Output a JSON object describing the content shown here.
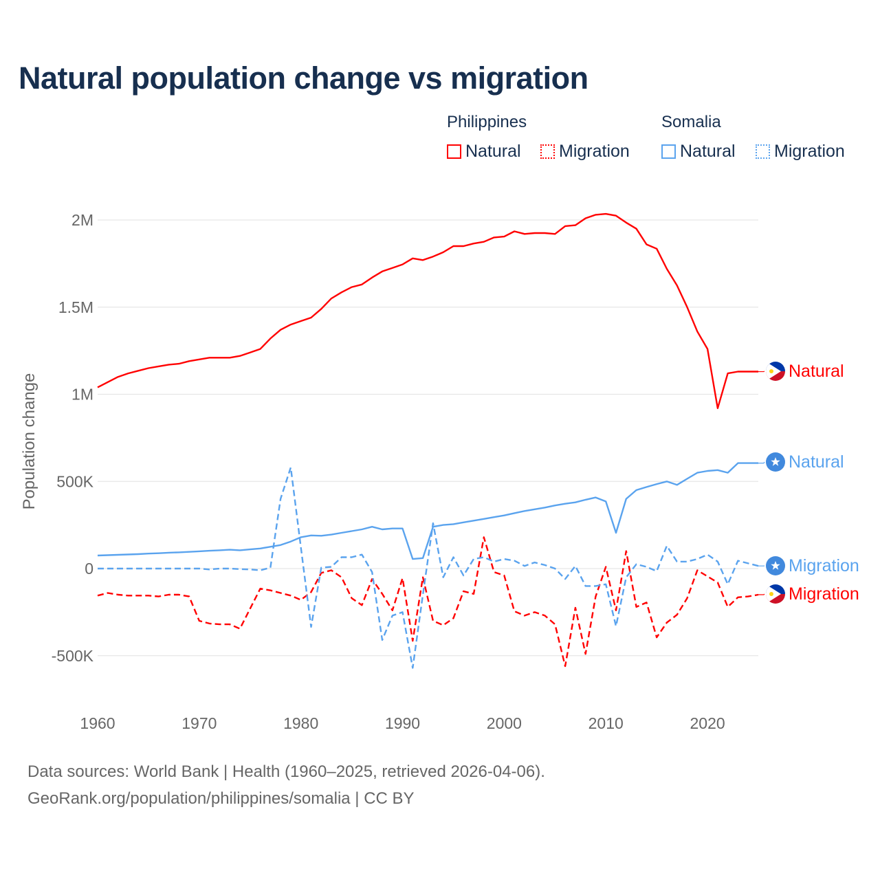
{
  "chart_data": {
    "type": "line",
    "title": "Natural population change vs migration",
    "ylabel": "Population change",
    "xlabel": "",
    "xlim": [
      1960,
      2025
    ],
    "ylim": [
      -600000,
      2150000
    ],
    "x_ticks": [
      1960,
      1970,
      1980,
      1990,
      2000,
      2010,
      2020
    ],
    "x_tick_labels": [
      "1960",
      "1970",
      "1980",
      "1990",
      "2000",
      "2010",
      "2020"
    ],
    "y_ticks": [
      -500000,
      0,
      500000,
      1000000,
      1500000,
      2000000
    ],
    "y_tick_labels": [
      "-500K",
      "0",
      "500K",
      "1M",
      "1.5M",
      "2M"
    ],
    "grid": "horizontal",
    "legend": {
      "placement": "top-right",
      "groups": [
        {
          "name": "Philippines",
          "items": [
            "Natural",
            "Migration"
          ]
        },
        {
          "name": "Somalia",
          "items": [
            "Natural",
            "Migration"
          ]
        }
      ]
    },
    "x_start": 1960,
    "series": [
      {
        "name": "Philippines Natural",
        "country": "Philippines",
        "kind": "Natural",
        "end_label": "Natural",
        "color": "#ff0000",
        "dash": "solid",
        "flag": "philippines-flag",
        "values": [
          1040000,
          1070000,
          1100000,
          1120000,
          1135000,
          1150000,
          1160000,
          1170000,
          1175000,
          1190000,
          1200000,
          1210000,
          1210000,
          1210000,
          1220000,
          1240000,
          1260000,
          1320000,
          1370000,
          1400000,
          1420000,
          1440000,
          1490000,
          1550000,
          1585000,
          1615000,
          1630000,
          1670000,
          1705000,
          1725000,
          1745000,
          1780000,
          1770000,
          1790000,
          1815000,
          1850000,
          1850000,
          1865000,
          1875000,
          1900000,
          1905000,
          1935000,
          1920000,
          1925000,
          1925000,
          1920000,
          1965000,
          1970000,
          2010000,
          2030000,
          2035000,
          2025000,
          1985000,
          1950000,
          1860000,
          1835000,
          1720000,
          1625000,
          1500000,
          1360000,
          1260000,
          920000,
          1120000,
          1130000,
          1130000,
          1130000
        ]
      },
      {
        "name": "Philippines Migration",
        "country": "Philippines",
        "kind": "Migration",
        "end_label": "Migration",
        "color": "#ff0000",
        "dash": "dashed",
        "flag": "philippines-flag",
        "values": [
          -155000,
          -140000,
          -150000,
          -155000,
          -155000,
          -155000,
          -160000,
          -150000,
          -150000,
          -160000,
          -300000,
          -315000,
          -320000,
          -320000,
          -345000,
          -230000,
          -115000,
          -125000,
          -140000,
          -155000,
          -180000,
          -135000,
          -25000,
          -10000,
          -50000,
          -170000,
          -210000,
          -60000,
          -145000,
          -240000,
          -55000,
          -415000,
          -50000,
          -300000,
          -325000,
          -285000,
          -130000,
          -145000,
          180000,
          -20000,
          -40000,
          -245000,
          -270000,
          -250000,
          -270000,
          -320000,
          -560000,
          -225000,
          -490000,
          -160000,
          10000,
          -240000,
          100000,
          -220000,
          -195000,
          -395000,
          -310000,
          -265000,
          -170000,
          -10000,
          -45000,
          -80000,
          -220000,
          -165000,
          -160000,
          -150000
        ]
      },
      {
        "name": "Somalia Natural",
        "country": "Somalia",
        "kind": "Natural",
        "end_label": "Natural",
        "color": "#5aa3ee",
        "dash": "solid",
        "flag": "somalia-flag",
        "values": [
          75000,
          77000,
          79000,
          81000,
          83000,
          86000,
          88000,
          91000,
          93000,
          96000,
          99000,
          102000,
          105000,
          108000,
          105000,
          110000,
          115000,
          125000,
          135000,
          155000,
          180000,
          190000,
          188000,
          195000,
          205000,
          215000,
          225000,
          240000,
          225000,
          230000,
          230000,
          55000,
          60000,
          240000,
          250000,
          255000,
          265000,
          275000,
          285000,
          295000,
          305000,
          318000,
          330000,
          340000,
          350000,
          362000,
          372000,
          380000,
          395000,
          408000,
          385000,
          205000,
          400000,
          450000,
          468000,
          485000,
          500000,
          480000,
          515000,
          550000,
          560000,
          565000,
          550000,
          605000,
          605000,
          605000
        ]
      },
      {
        "name": "Somalia Migration",
        "country": "Somalia",
        "kind": "Migration",
        "end_label": "Migration",
        "color": "#5aa3ee",
        "dash": "dashed",
        "flag": "somalia-flag",
        "values": [
          0,
          0,
          0,
          0,
          0,
          0,
          0,
          0,
          0,
          0,
          0,
          -5000,
          0,
          0,
          -3000,
          -5000,
          -10000,
          5000,
          400000,
          580000,
          120000,
          -335000,
          5000,
          10000,
          65000,
          65000,
          80000,
          -20000,
          -410000,
          -270000,
          -250000,
          -570000,
          -150000,
          260000,
          -50000,
          65000,
          -40000,
          55000,
          65000,
          40000,
          55000,
          45000,
          15000,
          35000,
          20000,
          0,
          -60000,
          15000,
          -100000,
          -100000,
          -90000,
          -330000,
          -50000,
          25000,
          10000,
          -15000,
          130000,
          40000,
          40000,
          55000,
          80000,
          40000,
          -90000,
          45000,
          30000,
          15000
        ]
      }
    ]
  },
  "footer": {
    "line1": "Data sources: World Bank | Health (1960–2025, retrieved 2026-04-06).",
    "line2": "GeoRank.org/population/philippines/somalia | CC BY"
  }
}
